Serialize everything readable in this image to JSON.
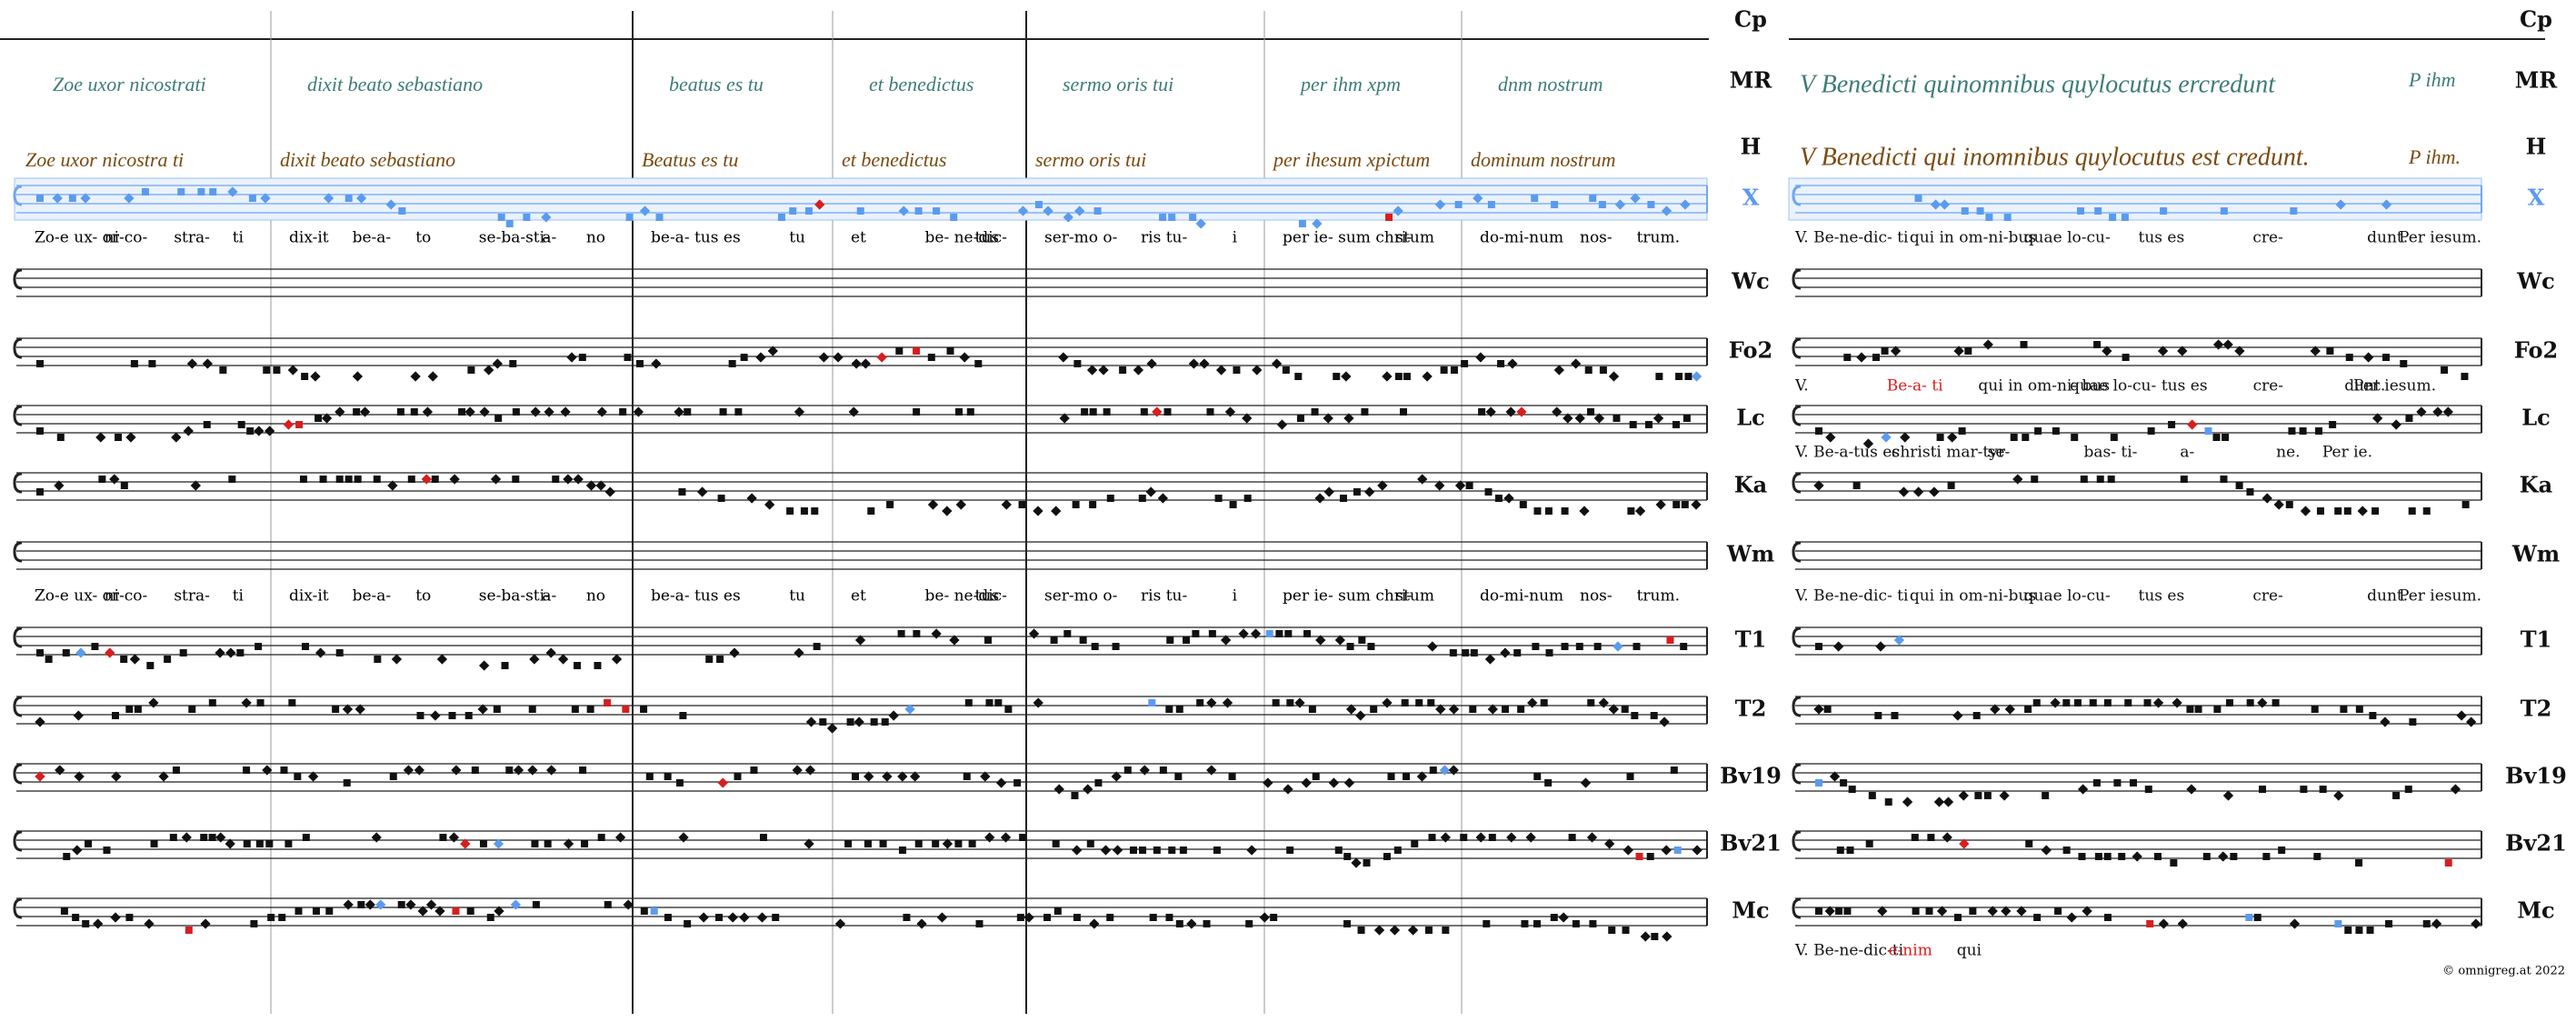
{
  "sigla": [
    "Cp",
    "MR",
    "H",
    "X",
    "Wc",
    "Fo2",
    "Lc",
    "Ka",
    "Wm",
    "T1",
    "T2",
    "Bv19",
    "Bv21",
    "Mc"
  ],
  "left": {
    "mr": [
      "Zoe uxor nicostrati",
      "dixit beato sebastiano",
      "beatus es tu",
      "et benedictus",
      "sermo oris tui",
      "per ihm xpm",
      "dnm nostrum"
    ],
    "h": [
      "Zoe uxor nicostra ti",
      "dixit beato sebastiano",
      "Beatus es tu",
      "et benedictus",
      "sermo oris tui",
      "per ihesum xpictum",
      "dominum nostrum"
    ],
    "lyrics_x": [
      [
        "Zo-e ux- or",
        "ni-co-",
        "stra-",
        "ti"
      ],
      [
        "dix-it",
        "be-a-",
        "to",
        "se-ba-sti-",
        "a-",
        "no"
      ],
      [
        "be-a- tus es",
        "tu"
      ],
      [
        "et",
        "be- ne-dic-",
        "tus"
      ],
      [
        "ser-mo o-",
        "ris tu-",
        "i"
      ],
      [
        "per ie- sum chri-",
        "stum"
      ],
      [
        "do-mi-num",
        "nos-",
        "trum."
      ]
    ],
    "lyrics_wm": [
      [
        "Zo-e ux- or",
        "ni-co-",
        "stra-",
        "ti"
      ],
      [
        "dix-it",
        "be-a-",
        "to",
        "se-ba-sti-",
        "a-",
        "no"
      ],
      [
        "be-a- tus es",
        "tu"
      ],
      [
        "et",
        "be- ne-dic-",
        "tus"
      ],
      [
        "ser-mo o-",
        "ris tu-",
        "i"
      ],
      [
        "per ie- sum chri-",
        "stum"
      ],
      [
        "do-mi-num",
        "nos-",
        "trum."
      ]
    ]
  },
  "right": {
    "mr": [
      "V Benedicti quinomnibus quylocutus ercredunt",
      "P ihm"
    ],
    "h": [
      "V Benedicti qui inomnibus quylocutus est credunt.",
      "P ihm."
    ],
    "lyrics_x": [
      {
        "text": "V. Be-ne-dic- ti"
      },
      {
        "text": "qui in om-ni-bus"
      },
      {
        "text": "quae lo-cu-"
      },
      {
        "text": "tus es"
      },
      {
        "text": "cre-"
      },
      {
        "text": "dunt."
      },
      {
        "text": "Per iesum."
      }
    ],
    "lyrics_fo2": [
      {
        "text": "V."
      },
      {
        "text": "Be-a- ti",
        "color": "#d81e1e"
      },
      {
        "text": "qui in om-ni- bus"
      },
      {
        "text": "quae lo-cu-"
      },
      {
        "text": "tus es"
      },
      {
        "text": "cre-"
      },
      {
        "text": "dunt."
      },
      {
        "text": "Per iesum."
      }
    ],
    "lyrics_lc": [
      {
        "text": "V. Be-a-tus es"
      },
      {
        "text": "christi mar-tyr"
      },
      {
        "text": "se-"
      },
      {
        "text": "bas- ti-"
      },
      {
        "text": "a-"
      },
      {
        "text": "ne."
      },
      {
        "text": "Per ie."
      }
    ],
    "lyrics_wm": [
      {
        "text": "V. Be-ne-dic- ti"
      },
      {
        "text": "qui in om-ni-bus"
      },
      {
        "text": "quae lo-cu-"
      },
      {
        "text": "tus es"
      },
      {
        "text": "cre-"
      },
      {
        "text": "dunt."
      },
      {
        "text": "Per iesum."
      }
    ],
    "lyrics_mc": [
      {
        "text": "V. Be-ne-dic-ti"
      },
      {
        "text": "e-nim",
        "color": "#d81e1e"
      },
      {
        "text": "qui"
      }
    ]
  },
  "footer": "© omnigreg.at 2022"
}
